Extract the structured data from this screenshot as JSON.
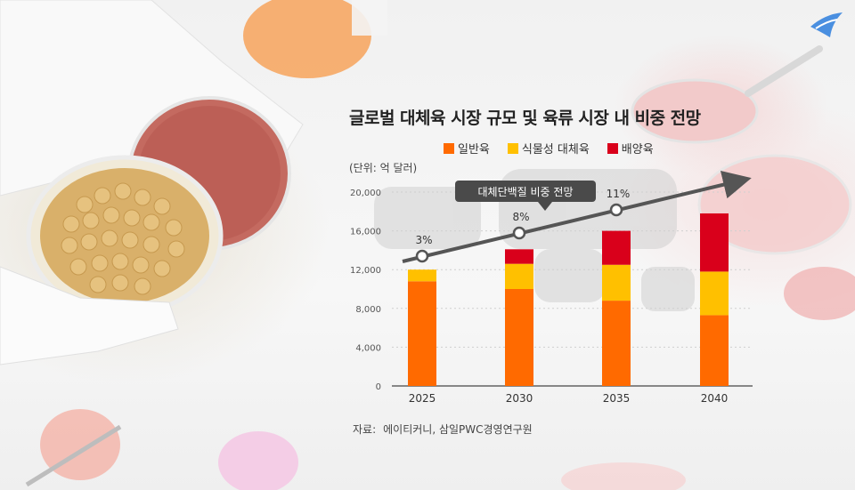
{
  "chart_data": {
    "type": "bar",
    "title": "글로벌 대체육 시장 규모 및 육류 시장 내 비중 전망",
    "unit_label": "(단위: 억 달러)",
    "categories": [
      "2025",
      "2030",
      "2035",
      "2040"
    ],
    "series": [
      {
        "name": "일반육",
        "color": "#ff6a00",
        "values": [
          10800,
          10000,
          8800,
          7300
        ]
      },
      {
        "name": "식물성 대체육",
        "color": "#ffc000",
        "values": [
          1200,
          2600,
          3700,
          4500
        ]
      },
      {
        "name": "배양육",
        "color": "#d9001b",
        "values": [
          0,
          1500,
          3500,
          6000
        ]
      }
    ],
    "yticks": [
      "20,000",
      "16,000",
      "12,000",
      "8,000",
      "4,000",
      "0"
    ],
    "ylim": [
      0,
      20000
    ],
    "line": {
      "label": "대체단백질 비중 전망",
      "points": [
        {
          "category": "2025",
          "percent_label": "3%"
        },
        {
          "category": "2030",
          "percent_label": "8%"
        },
        {
          "category": "2035",
          "percent_label": "11%"
        }
      ]
    },
    "legend_position": "top",
    "grid": true,
    "source_key": "자료:",
    "source_value": "에이티커니, 삼일PWC경영연구원"
  },
  "colors": {
    "axis": "#444444",
    "callout_bg": "#4a4a4a",
    "line": "#555555",
    "grid": "#cfcfcf"
  }
}
